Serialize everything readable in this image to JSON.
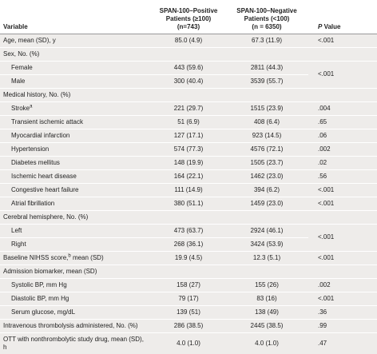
{
  "header": {
    "variable": "Variable",
    "positive": [
      "SPAN-100–Positive",
      "Patients (≥100)",
      "(n=743)"
    ],
    "negative": [
      "SPAN-100–Negative",
      "Patients (<100)",
      "(n = 6350)"
    ],
    "p_symbol": "P",
    "p_text": "Value"
  },
  "rows": [
    {
      "label": "Age, mean (SD), y",
      "positive": "85.0 (4.9)",
      "negative": "67.3 (11.9)",
      "p": "<.001"
    },
    {
      "label": "Sex, No. (%)",
      "p": "<.001",
      "rows": [
        {
          "label": "Female",
          "positive": "443 (59.6)",
          "negative": "2811 (44.3)"
        },
        {
          "label": "Male",
          "positive": "300 (40.4)",
          "negative": "3539 (55.7)"
        }
      ]
    },
    {
      "label": "Medical history, No. (%)",
      "rows": [
        {
          "label": "Stroke",
          "note": "a",
          "positive": "221 (29.7)",
          "negative": "1515 (23.9)",
          "p": ".004"
        },
        {
          "label": "Transient ischemic attack",
          "positive": "51 (6.9)",
          "negative": "408 (6.4)",
          "p": ".65"
        },
        {
          "label": "Myocardial infarction",
          "positive": "127 (17.1)",
          "negative": "923 (14.5)",
          "p": ".06"
        },
        {
          "label": "Hypertension",
          "positive": "574 (77.3)",
          "negative": "4576 (72.1)",
          "p": ".002"
        },
        {
          "label": "Diabetes mellitus",
          "positive": "148 (19.9)",
          "negative": "1505 (23.7)",
          "p": ".02"
        },
        {
          "label": "Ischemic heart disease",
          "positive": "164 (22.1)",
          "negative": "1462 (23.0)",
          "p": ".56"
        },
        {
          "label": "Congestive heart failure",
          "positive": "111 (14.9)",
          "negative": "394 (6.2)",
          "p": "<.001"
        },
        {
          "label": "Atrial fibrillation",
          "positive": "380 (51.1)",
          "negative": "1459 (23.0)",
          "p": "<.001"
        }
      ]
    },
    {
      "label": "Cerebral hemisphere, No. (%)",
      "p": "<.001",
      "rows": [
        {
          "label": "Left",
          "positive": "473 (63.7)",
          "negative": "2924 (46.1)"
        },
        {
          "label": "Right",
          "positive": "268 (36.1)",
          "negative": "3424 (53.9)"
        }
      ]
    },
    {
      "label": "Baseline NIHSS score,",
      "note": "b",
      "label_after": " mean (SD)",
      "positive": "19.9 (4.5)",
      "negative": "12.3 (5.1)",
      "p": "<.001"
    },
    {
      "label": "Admission biomarker, mean (SD)",
      "rows": [
        {
          "label": "Systolic BP, mm Hg",
          "positive": "158 (27)",
          "negative": "155 (26)",
          "p": ".002"
        },
        {
          "label": "Diastolic BP, mm Hg",
          "positive": "79 (17)",
          "negative": "83 (16)",
          "p": "<.001"
        },
        {
          "label": "Serum glucose, mg/dL",
          "positive": "139 (51)",
          "negative": "138 (49)",
          "p": ".36"
        }
      ]
    },
    {
      "label": "Intravenous thrombolysis administered, No. (%)",
      "positive": "286 (38.5)",
      "negative": "2445 (38.5)",
      "p": ".99"
    },
    {
      "label": "OTT with nonthrombolytic study drug, mean (SD), h",
      "positive": "4.0 (1.0)",
      "negative": "4.0 (1.0)",
      "p": ".47"
    }
  ]
}
